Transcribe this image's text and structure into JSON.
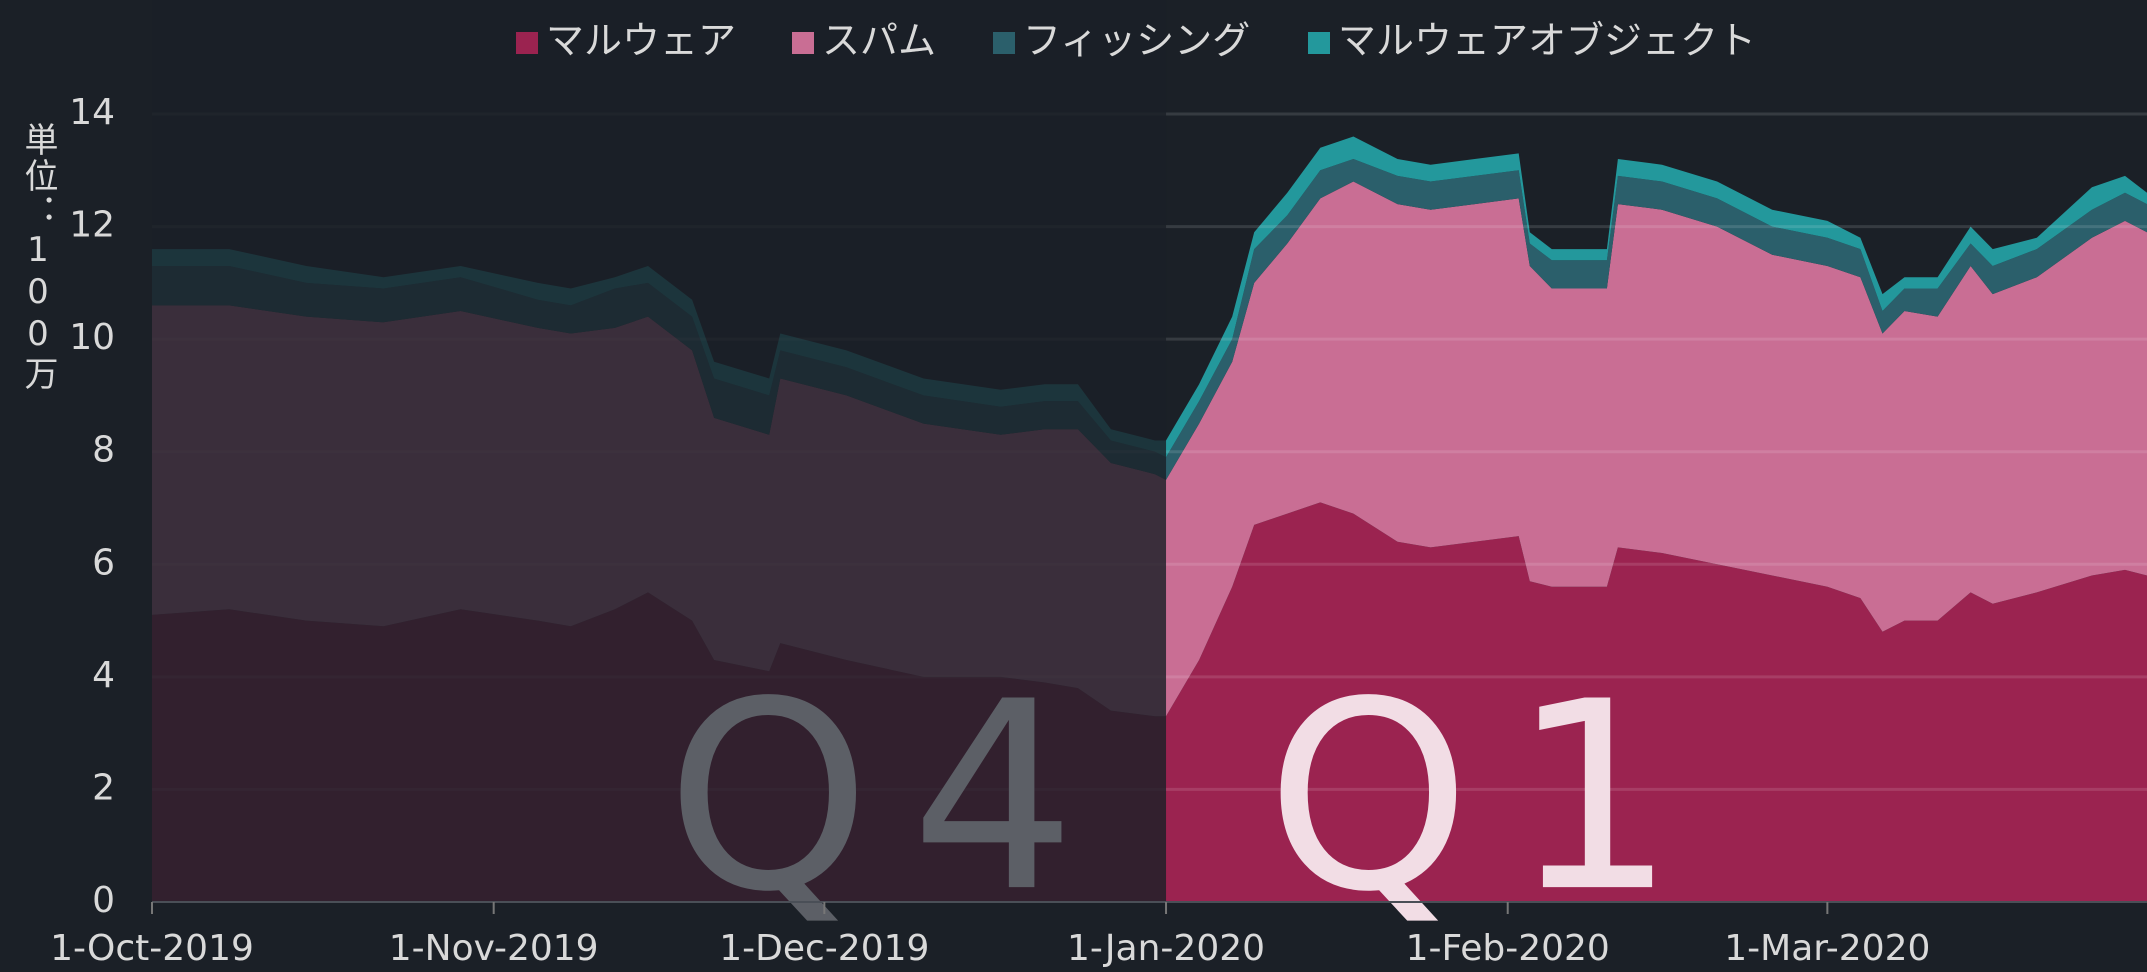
{
  "chart_data": {
    "type": "stacked_area",
    "y_label": "単位：100万",
    "x": [
      "2019-10-01",
      "2019-10-08",
      "2019-10-15",
      "2019-10-22",
      "2019-10-29",
      "2019-11-05",
      "2019-11-08",
      "2019-11-12",
      "2019-11-15",
      "2019-11-19",
      "2019-11-21",
      "2019-11-26",
      "2019-11-27",
      "2019-12-03",
      "2019-12-10",
      "2019-12-17",
      "2019-12-21",
      "2019-12-24",
      "2019-12-27",
      "2019-12-31",
      "2020-01-01",
      "2020-01-04",
      "2020-01-07",
      "2020-01-09",
      "2020-01-12",
      "2020-01-15",
      "2020-01-18",
      "2020-01-22",
      "2020-01-25",
      "2020-01-29",
      "2020-02-02",
      "2020-02-03",
      "2020-02-05",
      "2020-02-10",
      "2020-02-11",
      "2020-02-15",
      "2020-02-20",
      "2020-02-25",
      "2020-03-01",
      "2020-03-04",
      "2020-03-06",
      "2020-03-08",
      "2020-03-11",
      "2020-03-14",
      "2020-03-16",
      "2020-03-20",
      "2020-03-25",
      "2020-03-28",
      "2020-03-30"
    ],
    "series": [
      {
        "name": "マルウェア",
        "color": "#9b2350",
        "values": [
          5.1,
          5.2,
          5.0,
          4.9,
          5.2,
          5.0,
          4.9,
          5.2,
          5.5,
          5.0,
          4.3,
          4.1,
          4.6,
          4.3,
          4.0,
          4.0,
          3.9,
          3.8,
          3.4,
          3.3,
          3.3,
          4.3,
          5.6,
          6.7,
          6.9,
          7.1,
          6.9,
          6.4,
          6.3,
          6.4,
          6.5,
          5.7,
          5.6,
          5.6,
          6.3,
          6.2,
          6.0,
          5.8,
          5.6,
          5.4,
          4.8,
          5.0,
          5.0,
          5.5,
          5.3,
          5.5,
          5.8,
          5.9,
          5.8
        ]
      },
      {
        "name": "スパム",
        "color": "#c96e94",
        "values": [
          5.5,
          5.4,
          5.4,
          5.4,
          5.3,
          5.2,
          5.2,
          5.0,
          4.9,
          4.8,
          4.3,
          4.2,
          4.7,
          4.7,
          4.5,
          4.3,
          4.5,
          4.6,
          4.4,
          4.3,
          4.2,
          4.2,
          4.0,
          4.3,
          4.8,
          5.4,
          5.9,
          6.0,
          6.0,
          6.0,
          6.0,
          5.6,
          5.3,
          5.3,
          6.1,
          6.1,
          6.0,
          5.7,
          5.7,
          5.7,
          5.3,
          5.5,
          5.4,
          5.8,
          5.5,
          5.6,
          6.0,
          6.2,
          6.1
        ]
      },
      {
        "name": "フィッシング",
        "color": "#2b5f6b",
        "values": [
          0.7,
          0.7,
          0.6,
          0.6,
          0.6,
          0.5,
          0.5,
          0.7,
          0.6,
          0.6,
          0.7,
          0.7,
          0.5,
          0.5,
          0.5,
          0.5,
          0.5,
          0.5,
          0.4,
          0.4,
          0.4,
          0.4,
          0.4,
          0.6,
          0.5,
          0.5,
          0.4,
          0.5,
          0.5,
          0.5,
          0.5,
          0.4,
          0.5,
          0.5,
          0.5,
          0.5,
          0.5,
          0.5,
          0.5,
          0.5,
          0.4,
          0.4,
          0.5,
          0.4,
          0.5,
          0.5,
          0.5,
          0.5,
          0.5
        ]
      },
      {
        "name": "マルウェアオブジェクト",
        "color": "#23989c",
        "values": [
          0.3,
          0.3,
          0.3,
          0.2,
          0.2,
          0.3,
          0.3,
          0.2,
          0.3,
          0.3,
          0.3,
          0.3,
          0.3,
          0.3,
          0.3,
          0.3,
          0.3,
          0.3,
          0.2,
          0.2,
          0.3,
          0.3,
          0.4,
          0.3,
          0.4,
          0.4,
          0.4,
          0.3,
          0.3,
          0.3,
          0.3,
          0.2,
          0.2,
          0.2,
          0.3,
          0.3,
          0.3,
          0.3,
          0.3,
          0.2,
          0.3,
          0.2,
          0.2,
          0.3,
          0.3,
          0.2,
          0.4,
          0.3,
          0.2
        ]
      }
    ],
    "xlim": [
      "2019-10-01",
      "2020-03-30"
    ],
    "xticks": [
      {
        "value": "2019-10-01",
        "label": "1-Oct-2019"
      },
      {
        "value": "2019-11-01",
        "label": "1-Nov-2019"
      },
      {
        "value": "2019-12-01",
        "label": "1-Dec-2019"
      },
      {
        "value": "2020-01-01",
        "label": "1-Jan-2020"
      },
      {
        "value": "2020-02-01",
        "label": "1-Feb-2020"
      },
      {
        "value": "2020-03-01",
        "label": "1-Mar-2020"
      }
    ],
    "ylim": [
      0,
      14
    ],
    "yticks": [
      0,
      2,
      4,
      6,
      8,
      10,
      12,
      14
    ],
    "grid": true,
    "legend": "top",
    "annotations": [
      {
        "text": "Q4",
        "x_start": "2019-10-01",
        "x_end": "2020-01-01",
        "dimmed": true,
        "color": "#5c5f66"
      },
      {
        "text": "Q1",
        "x_start": "2020-01-01",
        "x_end": "2020-03-30",
        "dimmed": false,
        "color": "#f2dde5"
      }
    ]
  }
}
